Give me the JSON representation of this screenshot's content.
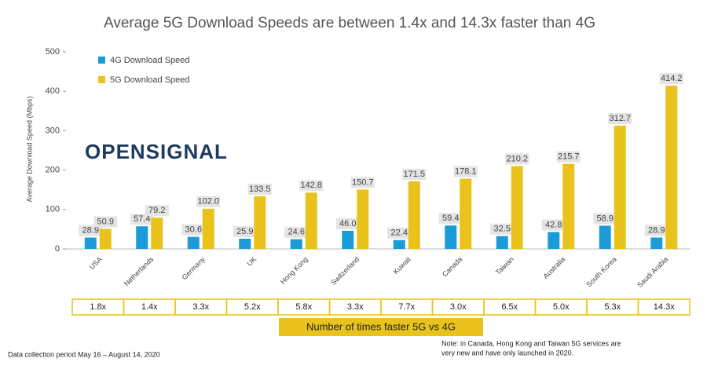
{
  "chart_data": {
    "type": "bar",
    "title": "Average 5G Download Speeds are between 1.4x and 14.3x faster than 4G",
    "y_label": "Average Download Speed (Mbps)",
    "logo": "OPENSIGNAL",
    "categories": [
      "USA",
      "Netherlands",
      "Germany",
      "UK",
      "Hong Kong",
      "Switzerland",
      "Kuwait",
      "Canada",
      "Taiwan",
      "Australia",
      "South Korea",
      "Saudi Arabia"
    ],
    "series": [
      {
        "name": "4G Download Speed",
        "color": "#1b9bd7",
        "values": [
          28.9,
          57.4,
          30.6,
          25.9,
          24.6,
          46.0,
          22.4,
          59.4,
          32.5,
          42.8,
          58.9,
          28.9
        ],
        "value_labels": [
          "28.9",
          "57.4",
          "30.6",
          "25.9",
          "24.6",
          "46.0",
          "22.4",
          "59.4",
          "32.5",
          "42.8",
          "58.9",
          "28.9"
        ]
      },
      {
        "name": "5G Download Speed",
        "color": "#e9c31c",
        "values": [
          50.9,
          79.2,
          102.0,
          133.5,
          142.8,
          150.7,
          171.5,
          178.1,
          210.2,
          215.7,
          312.7,
          414.2
        ],
        "value_labels": [
          "50.9",
          "79.2",
          "102.0",
          "133.5",
          "142.8",
          "150.7",
          "171.5",
          "178.1",
          "210.2",
          "215.7",
          "312.7",
          "414.2"
        ]
      }
    ],
    "ylim": [
      0,
      500
    ],
    "yticks": [
      0,
      100,
      200,
      300,
      400,
      500
    ],
    "ratio_labels": [
      "1.8x",
      "1.4x",
      "3.3x",
      "5.2x",
      "5.8x",
      "3.3x",
      "7.7x",
      "3.0x",
      "6.5x",
      "5.0x",
      "5.3x",
      "14.3x"
    ],
    "ratio_caption": "Number of times faster 5G vs 4G",
    "footnote": "Data collection period May 16 – August 14, 2020",
    "note_lines": [
      "Note: in Canada, Hong Kong and Taiwan 5G services are",
      "very new and have only launched in 2020."
    ]
  }
}
